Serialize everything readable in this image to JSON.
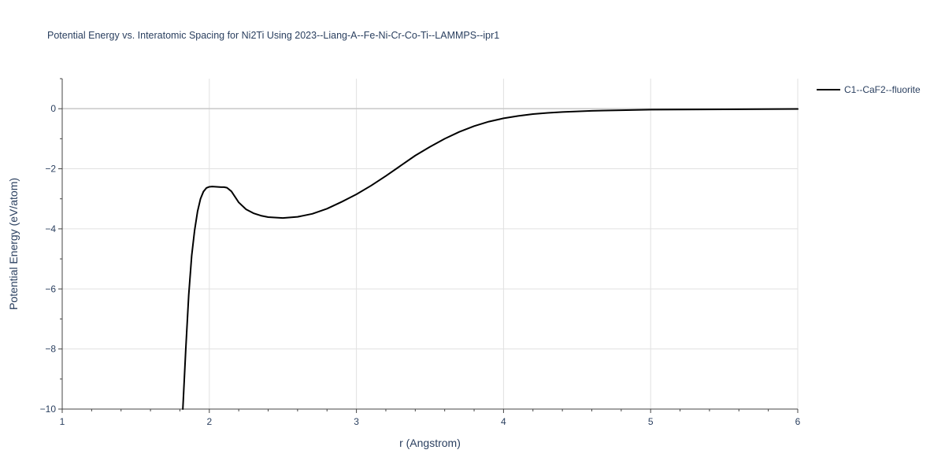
{
  "chart_data": {
    "type": "line",
    "title": "Potential Energy vs. Interatomic Spacing for Ni2Ti Using 2023--Liang-A--Fe-Ni-Cr-Co-Ti--LAMMPS--ipr1",
    "xlabel": "r (Angstrom)",
    "ylabel": "Potential Energy (eV/atom)",
    "xlim": [
      1,
      6
    ],
    "ylim": [
      -10,
      1
    ],
    "x_ticks": [
      1,
      2,
      3,
      4,
      5,
      6
    ],
    "x_tick_labels": [
      "1",
      "2",
      "3",
      "4",
      "5",
      "6"
    ],
    "y_ticks": [
      -10,
      -8,
      -6,
      -4,
      -2,
      0
    ],
    "y_tick_labels": [
      "−10",
      "−8",
      "−6",
      "−4",
      "−2",
      "0"
    ],
    "grid": true,
    "legend_position": "top-right",
    "series": [
      {
        "name": "C1--CaF2--fluorite",
        "color": "#000000",
        "x": [
          1.82,
          1.84,
          1.86,
          1.88,
          1.9,
          1.92,
          1.94,
          1.96,
          1.98,
          2.0,
          2.02,
          2.05,
          2.08,
          2.1,
          2.12,
          2.15,
          2.2,
          2.25,
          2.3,
          2.35,
          2.4,
          2.5,
          2.6,
          2.7,
          2.8,
          2.9,
          3.0,
          3.1,
          3.2,
          3.3,
          3.4,
          3.5,
          3.6,
          3.7,
          3.8,
          3.9,
          4.0,
          4.1,
          4.2,
          4.3,
          4.4,
          4.6,
          4.8,
          5.0,
          5.5,
          6.0
        ],
        "y": [
          -10.0,
          -8.0,
          -6.2,
          -4.9,
          -4.05,
          -3.42,
          -3.0,
          -2.76,
          -2.64,
          -2.6,
          -2.59,
          -2.6,
          -2.61,
          -2.61,
          -2.63,
          -2.75,
          -3.12,
          -3.35,
          -3.48,
          -3.56,
          -3.61,
          -3.64,
          -3.6,
          -3.5,
          -3.33,
          -3.1,
          -2.85,
          -2.56,
          -2.24,
          -1.9,
          -1.56,
          -1.27,
          -1.0,
          -0.77,
          -0.58,
          -0.43,
          -0.32,
          -0.24,
          -0.18,
          -0.14,
          -0.11,
          -0.07,
          -0.05,
          -0.03,
          -0.02,
          -0.01
        ]
      }
    ]
  }
}
